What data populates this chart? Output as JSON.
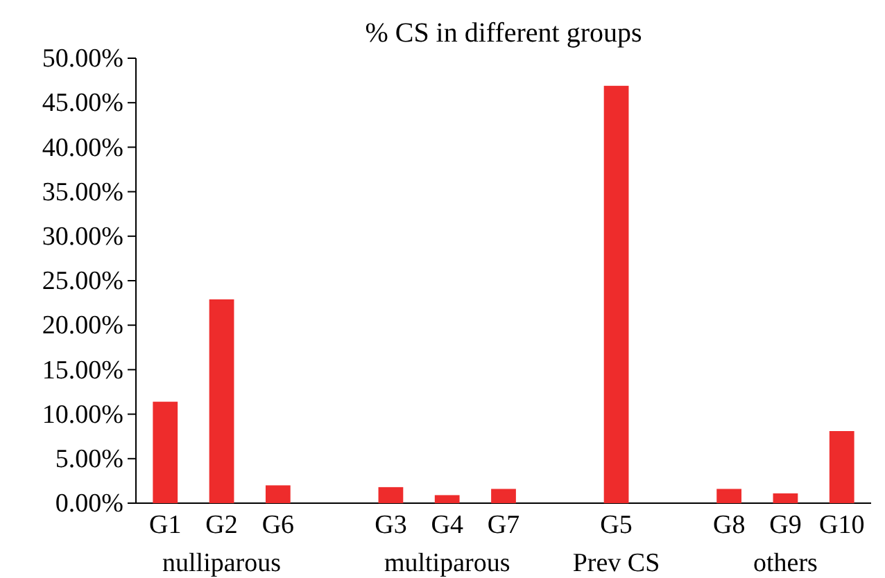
{
  "chart_data": {
    "type": "bar",
    "title": "% CS in different groups",
    "categories": [
      "G1",
      "G2",
      "G6",
      null,
      "G3",
      "G4",
      "G7",
      null,
      "G5",
      null,
      "G8",
      "G9",
      "G10"
    ],
    "values": [
      11.4,
      22.9,
      2.0,
      null,
      1.8,
      0.9,
      1.6,
      null,
      46.9,
      null,
      1.6,
      1.1,
      8.1
    ],
    "color": "#ee2c2c",
    "ylim": [
      0,
      50
    ],
    "yticks": [
      {
        "value": 0,
        "label": "0.00%"
      },
      {
        "value": 5,
        "label": "5.00%"
      },
      {
        "value": 10,
        "label": "10.00%"
      },
      {
        "value": 15,
        "label": "15.00%"
      },
      {
        "value": 20,
        "label": "20.00%"
      },
      {
        "value": 25,
        "label": "25.00%"
      },
      {
        "value": 30,
        "label": "30.00%"
      },
      {
        "value": 35,
        "label": "35.00%"
      },
      {
        "value": 40,
        "label": "40.00%"
      },
      {
        "value": 45,
        "label": "45.00%"
      },
      {
        "value": 50,
        "label": "50.00%"
      }
    ],
    "annotations": [
      "nulliparous",
      "multiparous",
      "Prev CS",
      "others"
    ]
  }
}
